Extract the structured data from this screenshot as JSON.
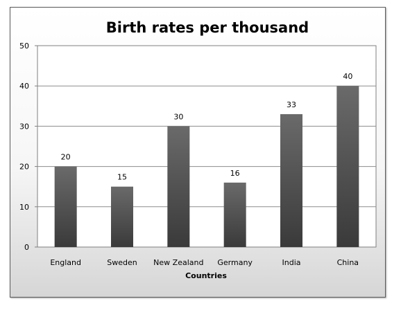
{
  "chart_data": {
    "type": "bar",
    "title": "Birth rates per thousand",
    "xlabel": "Countries",
    "ylabel": "",
    "categories": [
      "England",
      "Sweden",
      "New Zealand",
      "Germany",
      "India",
      "China"
    ],
    "values": [
      20,
      15,
      30,
      16,
      33,
      40
    ],
    "data_labels": [
      "20",
      "15",
      "30",
      "16",
      "33",
      "40"
    ],
    "ylim": [
      0,
      50
    ],
    "yticks": [
      0,
      10,
      20,
      30,
      40,
      50
    ],
    "ytick_labels": [
      "0",
      "10",
      "20",
      "30",
      "40",
      "50"
    ],
    "grid": true,
    "legend": "none",
    "colors": {
      "bar_top": "#6a6a6a",
      "bar_bottom": "#3a3a3a",
      "grid": "#8c8c8c",
      "plot_background": "#ffffff"
    }
  }
}
